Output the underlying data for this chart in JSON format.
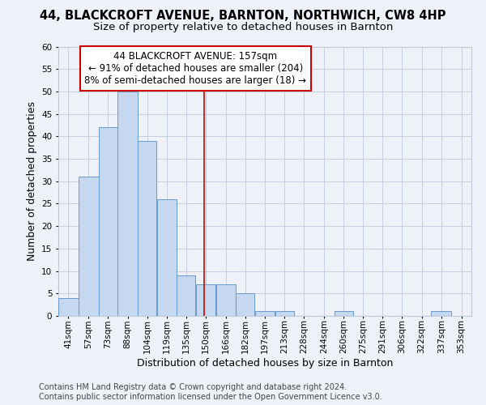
{
  "title": "44, BLACKCROFT AVENUE, BARNTON, NORTHWICH, CW8 4HP",
  "subtitle": "Size of property relative to detached houses in Barnton",
  "xlabel": "Distribution of detached houses by size in Barnton",
  "ylabel": "Number of detached properties",
  "bin_labels": [
    "41sqm",
    "57sqm",
    "73sqm",
    "88sqm",
    "104sqm",
    "119sqm",
    "135sqm",
    "150sqm",
    "166sqm",
    "182sqm",
    "197sqm",
    "213sqm",
    "228sqm",
    "244sqm",
    "260sqm",
    "275sqm",
    "291sqm",
    "306sqm",
    "322sqm",
    "337sqm",
    "353sqm"
  ],
  "bar_values": [
    4,
    31,
    42,
    50,
    39,
    26,
    9,
    7,
    7,
    5,
    1,
    1,
    0,
    0,
    1,
    0,
    0,
    0,
    0,
    1,
    0
  ],
  "bar_color": "#c5d8f0",
  "bar_edge_color": "#6699cc",
  "bin_edges": [
    41,
    57,
    73,
    88,
    104,
    119,
    135,
    150,
    166,
    182,
    197,
    213,
    228,
    244,
    260,
    275,
    291,
    306,
    322,
    337,
    353,
    369
  ],
  "annotation_text": "44 BLACKCROFT AVENUE: 157sqm\n← 91% of detached houses are smaller (204)\n8% of semi-detached houses are larger (18) →",
  "annotation_box_facecolor": "#ffffff",
  "annotation_box_edgecolor": "#cc0000",
  "vline_color": "#cc0000",
  "vline_x": 157,
  "ylim": [
    0,
    60
  ],
  "yticks": [
    0,
    5,
    10,
    15,
    20,
    25,
    30,
    35,
    40,
    45,
    50,
    55,
    60
  ],
  "footer_line1": "Contains HM Land Registry data © Crown copyright and database right 2024.",
  "footer_line2": "Contains public sector information licensed under the Open Government Licence v3.0.",
  "bg_color": "#eef2f8",
  "grid_color": "#c0c8d8",
  "title_fontsize": 10.5,
  "subtitle_fontsize": 9.5,
  "axis_label_fontsize": 9,
  "tick_fontsize": 7.5,
  "annotation_fontsize": 8.5,
  "footer_fontsize": 7
}
